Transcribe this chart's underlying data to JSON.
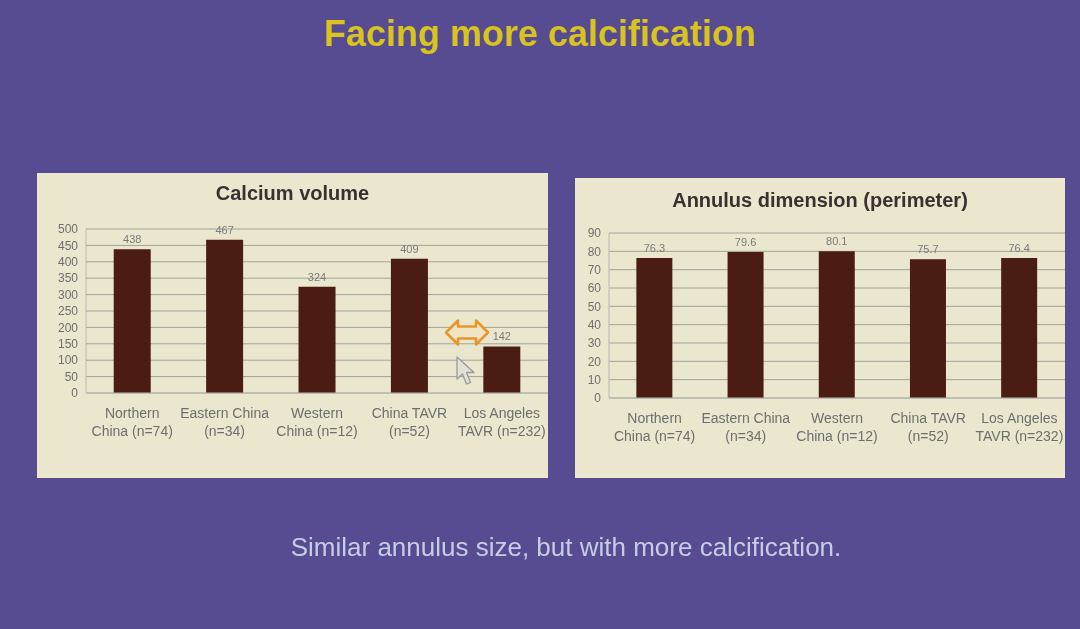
{
  "chart_data": [
    {
      "type": "other",
      "title": "Facing more calcification"
    },
    {
      "type": "bar",
      "title": "Calcium volume",
      "categories": [
        "Northern China (n=74)",
        "Eastern China (n=34)",
        "Western China (n=12)",
        "China TAVR (n=52)",
        "Los Angeles TAVR (n=232)"
      ],
      "values": [
        438,
        467,
        324,
        409,
        142
      ],
      "color": "#4b1d12",
      "ylim": [
        0,
        500
      ],
      "yticks": [
        0,
        50,
        100,
        150,
        200,
        250,
        300,
        350,
        400,
        450,
        500
      ],
      "grid": "y",
      "data_labels": true
    },
    {
      "type": "bar",
      "title": "Annulus dimension (perimeter)",
      "categories": [
        "Northern China (n=74)",
        "Eastern China (n=34)",
        "Western China (n=12)",
        "China TAVR (n=52)",
        "Los Angeles TAVR (n=232)"
      ],
      "values": [
        76.3,
        79.6,
        80.1,
        75.7,
        76.4
      ],
      "color": "#4b1d12",
      "ylim": [
        0,
        90
      ],
      "yticks": [
        0,
        10,
        20,
        30,
        40,
        50,
        60,
        70,
        80,
        90
      ],
      "grid": "y",
      "data_labels": true
    },
    {
      "type": "other",
      "annotations": [
        "Similar annulus size, but with more calcification."
      ]
    }
  ]
}
